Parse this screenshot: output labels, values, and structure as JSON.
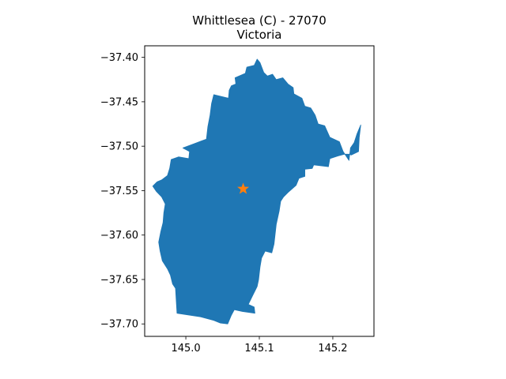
{
  "chart_data": {
    "type": "map",
    "title_line1": "Whittlesea (C) - 27070",
    "title_line2": "Victoria",
    "xlabel": "",
    "ylabel": "",
    "xlim": [
      144.944,
      145.256
    ],
    "ylim": [
      -37.714,
      -37.387
    ],
    "x_ticks": [
      {
        "value": 145.0,
        "label": "145.0"
      },
      {
        "value": 145.1,
        "label": "145.1"
      },
      {
        "value": 145.2,
        "label": "145.2"
      }
    ],
    "y_ticks": [
      {
        "value": -37.4,
        "label": "−37.40"
      },
      {
        "value": -37.45,
        "label": "−37.45"
      },
      {
        "value": -37.5,
        "label": "−37.50"
      },
      {
        "value": -37.55,
        "label": "−37.55"
      },
      {
        "value": -37.6,
        "label": "−37.60"
      },
      {
        "value": -37.65,
        "label": "−37.65"
      },
      {
        "value": -37.7,
        "label": "−37.70"
      }
    ],
    "region_color": "#1f77b4",
    "marker": {
      "lon": 145.078,
      "lat": -37.548,
      "color": "#ff7f0e",
      "shape": "star"
    },
    "grid": false,
    "boundary": [
      [
        145.038,
        -37.442
      ],
      [
        145.058,
        -37.446
      ],
      [
        145.059,
        -37.437
      ],
      [
        145.062,
        -37.432
      ],
      [
        145.068,
        -37.43
      ],
      [
        145.067,
        -37.423
      ],
      [
        145.081,
        -37.418
      ],
      [
        145.083,
        -37.411
      ],
      [
        145.093,
        -37.409
      ],
      [
        145.097,
        -37.402
      ],
      [
        145.101,
        -37.406
      ],
      [
        145.106,
        -37.417
      ],
      [
        145.111,
        -37.421
      ],
      [
        145.118,
        -37.419
      ],
      [
        145.123,
        -37.425
      ],
      [
        145.132,
        -37.423
      ],
      [
        145.139,
        -37.43
      ],
      [
        145.146,
        -37.434
      ],
      [
        145.147,
        -37.441
      ],
      [
        145.158,
        -37.446
      ],
      [
        145.162,
        -37.455
      ],
      [
        145.17,
        -37.457
      ],
      [
        145.176,
        -37.465
      ],
      [
        145.18,
        -37.475
      ],
      [
        145.189,
        -37.477
      ],
      [
        145.196,
        -37.49
      ],
      [
        145.209,
        -37.495
      ],
      [
        145.214,
        -37.506
      ],
      [
        145.222,
        -37.516
      ],
      [
        145.224,
        -37.502
      ],
      [
        145.229,
        -37.496
      ],
      [
        145.233,
        -37.486
      ],
      [
        145.236,
        -37.48
      ],
      [
        145.238,
        -37.476
      ],
      [
        145.236,
        -37.49
      ],
      [
        145.235,
        -37.506
      ],
      [
        145.225,
        -37.51
      ],
      [
        145.223,
        -37.509
      ],
      [
        145.216,
        -37.509
      ],
      [
        145.207,
        -37.511
      ],
      [
        145.196,
        -37.514
      ],
      [
        145.194,
        -37.523
      ],
      [
        145.174,
        -37.521
      ],
      [
        145.172,
        -37.525
      ],
      [
        145.162,
        -37.526
      ],
      [
        145.162,
        -37.534
      ],
      [
        145.154,
        -37.536
      ],
      [
        145.15,
        -37.544
      ],
      [
        145.139,
        -37.552
      ],
      [
        145.133,
        -37.557
      ],
      [
        145.129,
        -37.562
      ],
      [
        145.127,
        -37.573
      ],
      [
        145.123,
        -37.588
      ],
      [
        145.12,
        -37.61
      ],
      [
        145.117,
        -37.62
      ],
      [
        145.108,
        -37.618
      ],
      [
        145.103,
        -37.626
      ],
      [
        145.101,
        -37.636
      ],
      [
        145.099,
        -37.65
      ],
      [
        145.097,
        -37.658
      ],
      [
        145.091,
        -37.668
      ],
      [
        145.085,
        -37.678
      ],
      [
        145.093,
        -37.681
      ],
      [
        145.094,
        -37.688
      ],
      [
        145.077,
        -37.686
      ],
      [
        145.066,
        -37.684
      ],
      [
        145.062,
        -37.69
      ],
      [
        145.057,
        -37.7
      ],
      [
        145.047,
        -37.699
      ],
      [
        145.038,
        -37.696
      ],
      [
        145.02,
        -37.692
      ],
      [
        144.988,
        -37.688
      ],
      [
        144.987,
        -37.675
      ],
      [
        144.986,
        -37.66
      ],
      [
        144.982,
        -37.655
      ],
      [
        144.979,
        -37.645
      ],
      [
        144.975,
        -37.638
      ],
      [
        144.968,
        -37.629
      ],
      [
        144.965,
        -37.618
      ],
      [
        144.963,
        -37.608
      ],
      [
        144.966,
        -37.596
      ],
      [
        144.969,
        -37.586
      ],
      [
        144.97,
        -37.575
      ],
      [
        144.972,
        -37.565
      ],
      [
        144.967,
        -37.557
      ],
      [
        144.96,
        -37.551
      ],
      [
        144.955,
        -37.545
      ],
      [
        144.961,
        -37.54
      ],
      [
        144.967,
        -37.538
      ],
      [
        144.975,
        -37.533
      ],
      [
        144.978,
        -37.525
      ],
      [
        144.98,
        -37.515
      ],
      [
        144.99,
        -37.512
      ],
      [
        145.004,
        -37.514
      ],
      [
        145.005,
        -37.506
      ],
      [
        144.996,
        -37.502
      ],
      [
        145.015,
        -37.496
      ],
      [
        145.028,
        -37.492
      ],
      [
        145.03,
        -37.478
      ],
      [
        145.033,
        -37.465
      ],
      [
        145.035,
        -37.452
      ]
    ]
  }
}
